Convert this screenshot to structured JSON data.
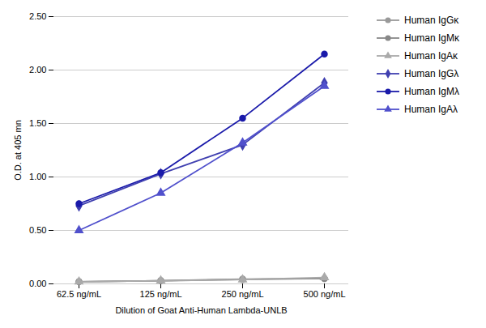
{
  "chart_data": {
    "type": "line",
    "xlabel": "Dilution of Goat Anti-Human Lambda-UNLB",
    "ylabel": "O.D. at 405 mn",
    "categories": [
      "62.5 ng/mL",
      "125 ng/mL",
      "250 ng/mL",
      "500 ng/mL"
    ],
    "series": [
      {
        "name": "Human IgGκ",
        "color": "#999999",
        "marker": "circle",
        "values": [
          0.02,
          0.03,
          0.04,
          0.05
        ]
      },
      {
        "name": "Human IgMκ",
        "color": "#888888",
        "marker": "circle",
        "values": [
          0.02,
          0.03,
          0.045,
          0.05
        ]
      },
      {
        "name": "Human IgAκ",
        "color": "#aaaaaa",
        "marker": "triangle",
        "values": [
          0.02,
          0.03,
          0.04,
          0.06
        ]
      },
      {
        "name": "Human IgGλ",
        "color": "#4040b0",
        "marker": "diamond",
        "values": [
          0.73,
          1.03,
          1.3,
          1.88
        ]
      },
      {
        "name": "Human IgMλ",
        "color": "#1a1aaa",
        "marker": "circle",
        "values": [
          0.75,
          1.04,
          1.55,
          2.15
        ]
      },
      {
        "name": "Human IgAλ",
        "color": "#5050cc",
        "marker": "triangle",
        "values": [
          0.5,
          0.85,
          1.32,
          1.85
        ]
      }
    ],
    "ylim": [
      0.0,
      2.5
    ],
    "yticks": [
      {
        "value": 0,
        "label": "0.00"
      },
      {
        "value": 0.5,
        "label": "0.50"
      },
      {
        "value": 1,
        "label": "1.00"
      },
      {
        "value": 1.5,
        "label": "1.50"
      },
      {
        "value": 2,
        "label": "2.00"
      },
      {
        "value": 2.5,
        "label": "2.50"
      }
    ],
    "grid": true,
    "legend": "right"
  }
}
